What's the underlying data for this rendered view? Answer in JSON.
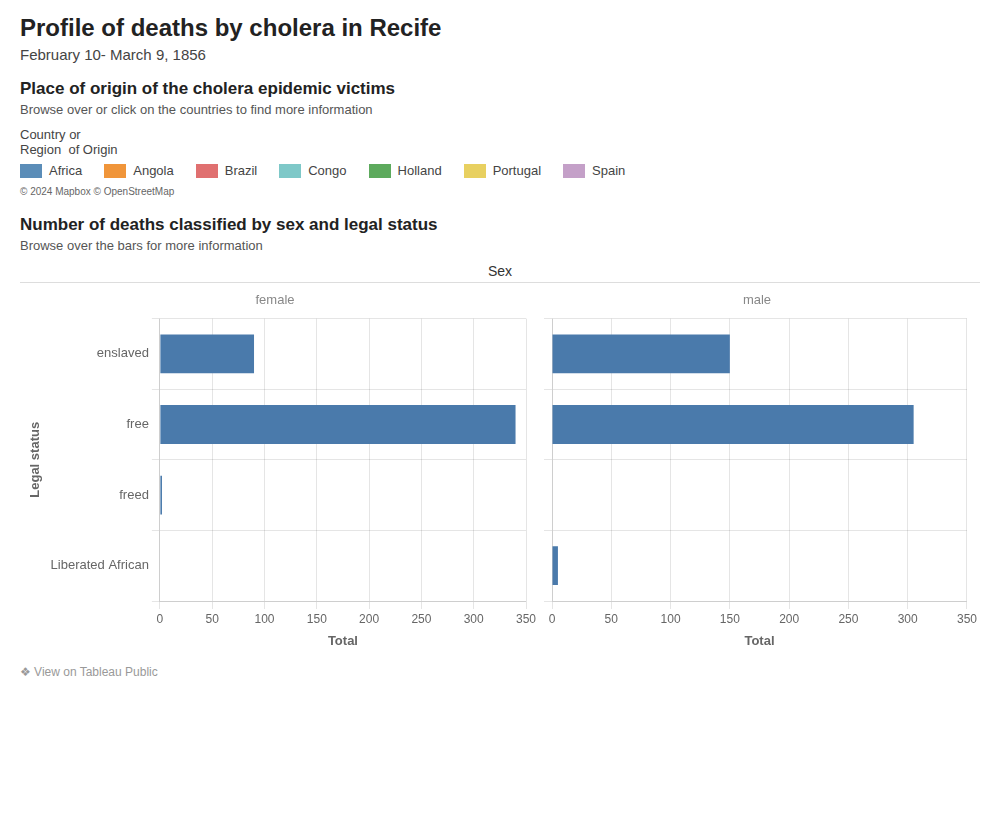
{
  "title": "Profile of  deaths by cholera in Recife",
  "subtitle": "February 10- March 9, 1856",
  "footer": "❖  View on Tableau Public",
  "chart_data": [
    {
      "type": "key",
      "title": "Place of origin of the cholera epidemic victims",
      "subtitle": "Browse over or click on  the countries  to find more information",
      "legend_title": "Country or\nRegion  of Origin",
      "series": [
        {
          "name": "Africa",
          "color": "#5b8db8"
        },
        {
          "name": "Angola",
          "color": "#f0953a"
        },
        {
          "name": "Brazil",
          "color": "#e07070"
        },
        {
          "name": "Congo",
          "color": "#7ec8c8"
        },
        {
          "name": "Holland",
          "color": "#5daa5d"
        },
        {
          "name": "Portugal",
          "color": "#e8d060"
        },
        {
          "name": "Spain",
          "color": "#c4a0c8"
        }
      ],
      "annotations": [
        "© 2024 Mapbox  © OpenStreetMap"
      ]
    },
    {
      "type": "bar",
      "orientation": "horizontal",
      "title": "Number of deaths classified by sex and legal status",
      "subtitle": "Browse over the bars for more information",
      "group_label": "Sex",
      "categories": [
        "enslaved",
        "free",
        "freed",
        "Liberated African"
      ],
      "series": [
        {
          "name": "female",
          "values": [
            90,
            340,
            2,
            0
          ]
        },
        {
          "name": "male",
          "values": [
            150,
            305,
            0,
            5
          ]
        }
      ],
      "color": "#4a7aab",
      "xlabel": "Total",
      "ylabel": "Legal status",
      "xlim": [
        0,
        350
      ],
      "xticks": [
        0,
        50,
        100,
        150,
        200,
        250,
        300,
        350
      ],
      "grid": true
    }
  ]
}
